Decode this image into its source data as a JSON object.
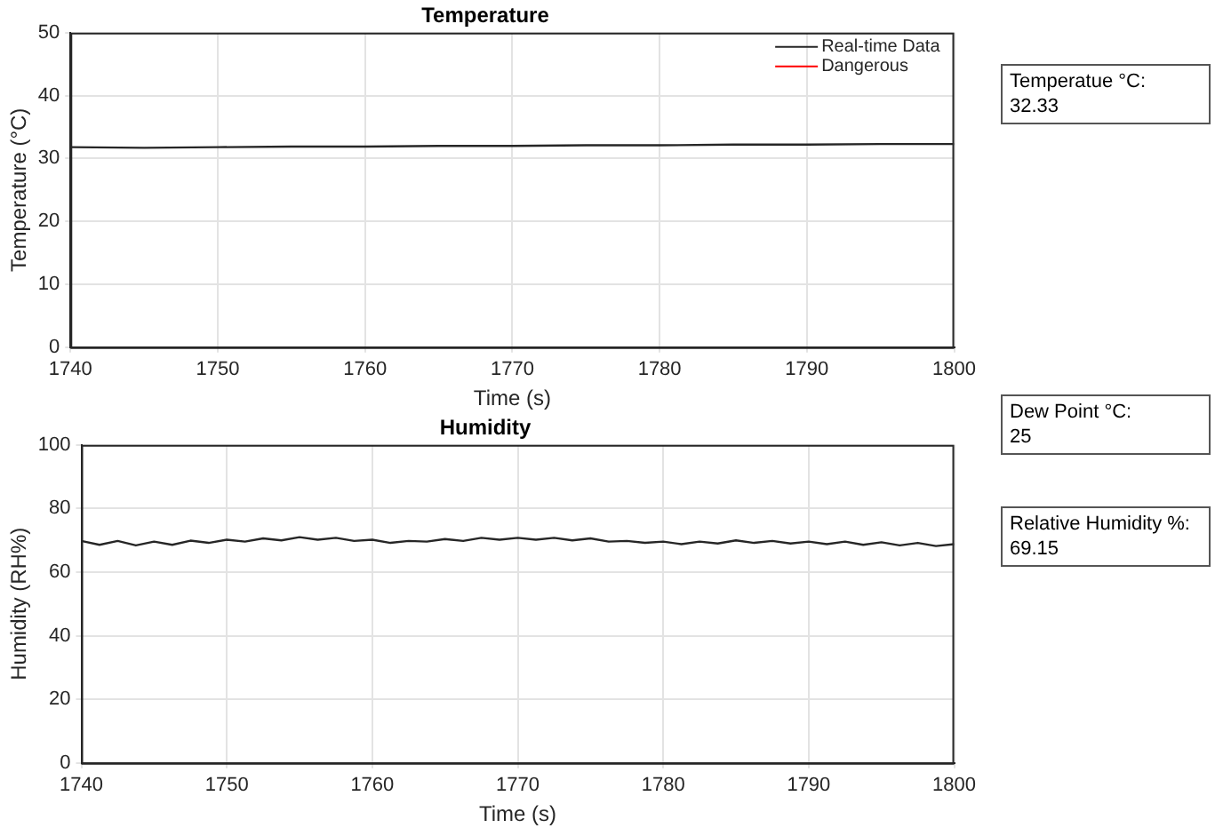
{
  "chart_data": [
    {
      "type": "line",
      "title": "Temperature",
      "xlabel": "Time (s)",
      "ylabel": "Temperature (°C)",
      "xlim": [
        1740,
        1800
      ],
      "xticks": [
        1740,
        1750,
        1760,
        1770,
        1780,
        1790,
        1800
      ],
      "ylim": [
        0,
        50
      ],
      "yticks": [
        0,
        10,
        20,
        30,
        40,
        50
      ],
      "grid": true,
      "legend": "top right",
      "marker": "none",
      "line_style": "solid",
      "x": [
        1740,
        1745,
        1750,
        1755,
        1760,
        1765,
        1770,
        1775,
        1780,
        1785,
        1790,
        1795,
        1800
      ],
      "series": [
        {
          "name": "Real-time Data",
          "color": "#262626",
          "values": [
            31.8,
            31.7,
            31.8,
            31.9,
            31.9,
            32.0,
            32.0,
            32.1,
            32.1,
            32.2,
            32.2,
            32.3,
            32.3
          ]
        },
        {
          "name": "Dangerous",
          "color": "#ff0000",
          "values": [
            null,
            null,
            null,
            null,
            null,
            null,
            null,
            null,
            null,
            null,
            null,
            null,
            null
          ]
        }
      ],
      "annotations": [
        "Temperatue °C:\n32.33"
      ]
    },
    {
      "type": "line",
      "title": "Humidity",
      "xlabel": "Time (s)",
      "ylabel": "Humidity (RH%)",
      "xlim": [
        1740,
        1800
      ],
      "xticks": [
        1740,
        1750,
        1760,
        1770,
        1780,
        1790,
        1800
      ],
      "ylim": [
        0,
        100
      ],
      "yticks": [
        0,
        20,
        40,
        60,
        80,
        100
      ],
      "grid": true,
      "marker": "none",
      "line_style": "solid",
      "x": [
        1740,
        1741.25,
        1742.5,
        1743.75,
        1745,
        1746.25,
        1747.5,
        1748.75,
        1750,
        1751.25,
        1752.5,
        1753.75,
        1755,
        1756.25,
        1757.5,
        1758.75,
        1760,
        1761.25,
        1762.5,
        1763.75,
        1765,
        1766.25,
        1767.5,
        1768.75,
        1770,
        1771.25,
        1772.5,
        1773.75,
        1775,
        1776.25,
        1777.5,
        1778.75,
        1780,
        1781.25,
        1782.5,
        1783.75,
        1785,
        1786.25,
        1787.5,
        1788.75,
        1790,
        1791.25,
        1792.5,
        1793.75,
        1795,
        1796.25,
        1797.5,
        1798.75,
        1800
      ],
      "series": [
        {
          "color": "#262626",
          "values": [
            69.8,
            68.6,
            69.8,
            68.4,
            69.6,
            68.6,
            69.9,
            69.2,
            70.2,
            69.6,
            70.6,
            70.0,
            71.0,
            70.2,
            70.8,
            69.8,
            70.2,
            69.2,
            69.8,
            69.6,
            70.4,
            69.8,
            70.8,
            70.2,
            70.8,
            70.2,
            70.8,
            70.0,
            70.6,
            69.6,
            69.8,
            69.2,
            69.6,
            68.8,
            69.6,
            69.0,
            70.0,
            69.2,
            69.8,
            69.0,
            69.6,
            68.8,
            69.6,
            68.6,
            69.4,
            68.4,
            69.2,
            68.2,
            68.8
          ]
        }
      ],
      "annotations": [
        "Dew Point °C:\n25",
        "Relative Humidity %:\n69.15"
      ]
    }
  ]
}
